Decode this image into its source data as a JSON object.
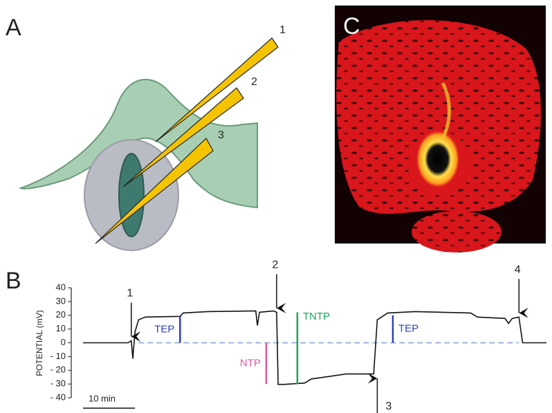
{
  "panels": {
    "a": "A",
    "b": "B",
    "c": "C"
  },
  "electrodes": [
    "1",
    "2",
    "3"
  ],
  "chart_data": {
    "type": "line",
    "ylabel": "POTENTIAL (mV)",
    "color": "#111111",
    "x": [
      0,
      8.7,
      9.3,
      9.6,
      10,
      10.7,
      12,
      18.7,
      19.3,
      24,
      33.3,
      33.6,
      34,
      36.7,
      37.3,
      37.6,
      38.7,
      42.7,
      44,
      48,
      50.7,
      56,
      56.7,
      58.7,
      64,
      74.7,
      76,
      81.3,
      82,
      82.7,
      84,
      84.7,
      89.3
    ],
    "values": [
      0,
      0,
      1.5,
      -11.6,
      7.6,
      16.7,
      18.7,
      19.2,
      21.7,
      22.7,
      23.2,
      12.6,
      22.2,
      23.2,
      22.2,
      -30.3,
      -30.3,
      -29.3,
      -26.3,
      -24.2,
      -22.7,
      -22.7,
      16.7,
      21.7,
      22.7,
      21.7,
      18.7,
      17.7,
      14.1,
      17.7,
      18.7,
      0,
      0
    ],
    "xlim": [
      0,
      89.3
    ],
    "ylim": [
      -40,
      40
    ],
    "yticks": [
      40,
      30,
      20,
      10,
      0,
      {
        "value": -10,
        "label": "- 10"
      },
      {
        "value": -20,
        "label": "- 20"
      },
      {
        "value": -30,
        "label": "- 30"
      },
      {
        "value": -40,
        "label": "- 40"
      }
    ],
    "scale_bar": {
      "label": "10 min",
      "value": 10
    },
    "arrows": [
      {
        "label": "1",
        "x": 9.3,
        "dir": "down"
      },
      {
        "label": "2",
        "x": 37.3,
        "dir": "down"
      },
      {
        "label": "3",
        "x": 56.7,
        "dir": "up"
      },
      {
        "label": "4",
        "x": 84,
        "dir": "down"
      }
    ],
    "measures": [
      {
        "label": "TEP",
        "color": "#2f3fb5",
        "x": 18.7,
        "from": 0,
        "to": 19.2
      },
      {
        "label": "NTP",
        "color": "#e2579c",
        "x": 35.3,
        "from": 0,
        "to": -30
      },
      {
        "label": "TNTP",
        "color": "#1aa35a",
        "x": 41.3,
        "from": 22.2,
        "to": -30
      },
      {
        "label": "TEP",
        "color": "#2f3fb5",
        "x": 59.7,
        "from": 0,
        "to": 20
      }
    ]
  }
}
